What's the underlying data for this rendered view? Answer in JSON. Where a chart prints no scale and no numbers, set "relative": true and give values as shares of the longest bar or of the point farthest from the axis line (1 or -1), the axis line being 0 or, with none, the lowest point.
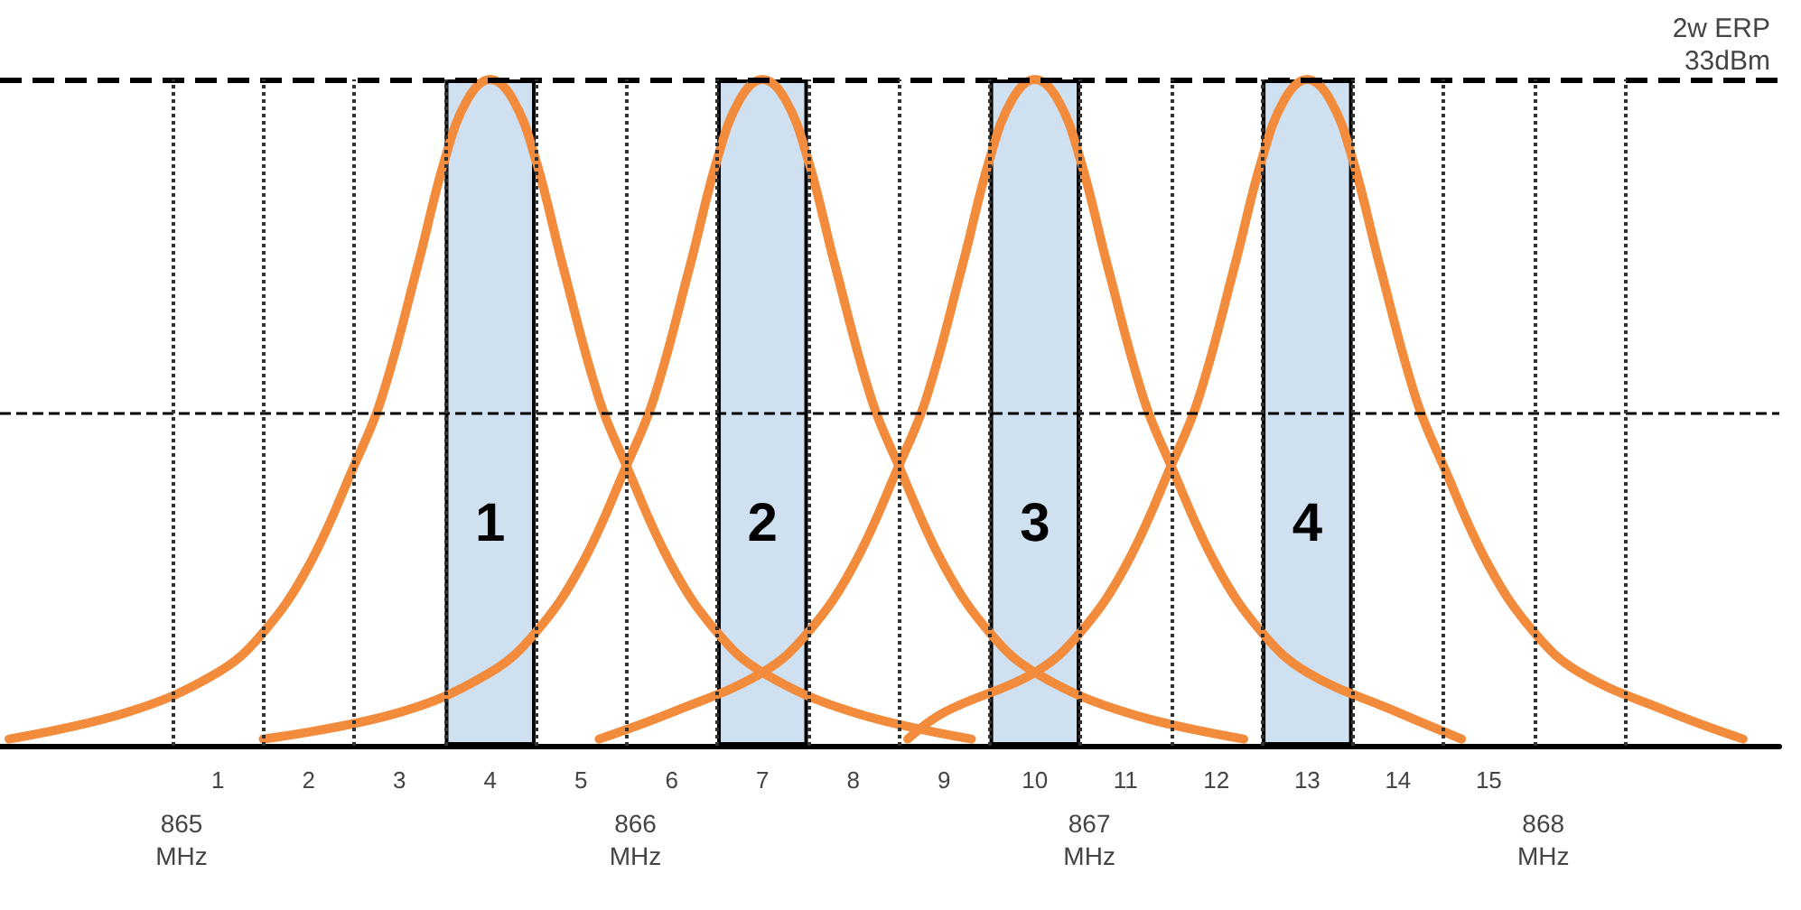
{
  "chart_data": {
    "type": "bar",
    "relative": true,
    "xlim": [
      -1.4,
      18.2
    ],
    "xticks": [
      {
        "value": 0.5,
        "label": null
      },
      {
        "value": 1,
        "label": "1"
      },
      {
        "value": 1.5,
        "label": null
      },
      {
        "value": 2,
        "label": "2"
      },
      {
        "value": 2.5,
        "label": null
      },
      {
        "value": 3,
        "label": "3"
      },
      {
        "value": 3.5,
        "label": null
      },
      {
        "value": 4,
        "label": "4"
      },
      {
        "value": 4.5,
        "label": null
      },
      {
        "value": 5,
        "label": "5"
      },
      {
        "value": 5.5,
        "label": null
      },
      {
        "value": 6,
        "label": "6"
      },
      {
        "value": 6.5,
        "label": null
      },
      {
        "value": 7,
        "label": "7"
      },
      {
        "value": 7.5,
        "label": null
      },
      {
        "value": 8,
        "label": "8"
      },
      {
        "value": 8.5,
        "label": null
      },
      {
        "value": 9,
        "label": "9"
      },
      {
        "value": 9.5,
        "label": null
      },
      {
        "value": 10,
        "label": "10"
      },
      {
        "value": 10.5,
        "label": null
      },
      {
        "value": 11,
        "label": "11"
      },
      {
        "value": 11.5,
        "label": null
      },
      {
        "value": 12,
        "label": "12"
      },
      {
        "value": 12.5,
        "label": null
      },
      {
        "value": 13,
        "label": "13"
      },
      {
        "value": 13.5,
        "label": null
      },
      {
        "value": 14,
        "label": "14"
      },
      {
        "value": 14.5,
        "label": null
      },
      {
        "value": 15,
        "label": "15"
      },
      {
        "value": 15.5,
        "label": null
      },
      {
        "value": 16.5,
        "label": null
      }
    ],
    "x2lim": [
      864.6,
      868.52
    ],
    "x2ticks": [
      {
        "value": 865,
        "label": "865\nMHz"
      },
      {
        "value": 866,
        "label": "866\nMHz"
      },
      {
        "value": 867,
        "label": "867\nMHz"
      },
      {
        "value": 868,
        "label": "868\nMHz"
      }
    ],
    "grid": "x",
    "marker": "none",
    "line_style": "solid",
    "series": [
      {
        "color": "#cfe0f1",
        "x": [
          4,
          7,
          10,
          13
        ],
        "values": [
          1,
          1,
          1,
          1
        ]
      },
      {
        "type": "line",
        "color": "#f28c3c",
        "x": [
          -1.3,
          0,
          1,
          1.5,
          2,
          2.5,
          2.8,
          3.2,
          3.5,
          3.75,
          4,
          4.25,
          4.5,
          4.8,
          5.2,
          5.5,
          6,
          6.5,
          7,
          8,
          9.3
        ],
        "values": [
          0.01,
          0.05,
          0.11,
          0.17,
          0.27,
          0.42,
          0.52,
          0.72,
          0.88,
          0.97,
          1,
          0.97,
          0.88,
          0.72,
          0.52,
          0.42,
          0.27,
          0.17,
          0.11,
          0.05,
          0.01
        ]
      },
      {
        "type": "line",
        "color": "#f28c3c",
        "x": [
          1.5,
          3,
          4,
          4.5,
          5,
          5.5,
          5.8,
          6.2,
          6.5,
          6.75,
          7,
          7.25,
          7.5,
          7.8,
          8.2,
          8.5,
          9,
          9.5,
          10,
          11,
          12.3
        ],
        "values": [
          0.01,
          0.05,
          0.11,
          0.17,
          0.27,
          0.42,
          0.52,
          0.72,
          0.88,
          0.97,
          1,
          0.97,
          0.88,
          0.72,
          0.52,
          0.42,
          0.27,
          0.17,
          0.11,
          0.05,
          0.01
        ]
      },
      {
        "type": "line",
        "color": "#f28c3c",
        "x": [
          5.2,
          6,
          7,
          7.5,
          8,
          8.5,
          8.8,
          9.2,
          9.5,
          9.75,
          10,
          10.25,
          10.5,
          10.8,
          11.2,
          11.5,
          12,
          12.5,
          13,
          14,
          14.7
        ],
        "values": [
          0.01,
          0.05,
          0.11,
          0.17,
          0.27,
          0.42,
          0.52,
          0.72,
          0.88,
          0.97,
          1,
          0.97,
          0.88,
          0.72,
          0.52,
          0.42,
          0.27,
          0.17,
          0.11,
          0.05,
          0.01
        ]
      },
      {
        "type": "line",
        "color": "#f28c3c",
        "x": [
          8.6,
          9,
          10,
          10.5,
          11,
          11.5,
          11.8,
          12.2,
          12.5,
          12.75,
          13,
          13.25,
          13.5,
          13.8,
          14.2,
          14.5,
          15,
          15.5,
          16,
          17,
          17.8
        ],
        "values": [
          0.01,
          0.05,
          0.11,
          0.17,
          0.27,
          0.42,
          0.52,
          0.72,
          0.88,
          0.97,
          1,
          0.97,
          0.88,
          0.72,
          0.52,
          0.42,
          0.27,
          0.17,
          0.11,
          0.05,
          0.01
        ]
      }
    ],
    "ref_lines": [
      {
        "axis": "y",
        "value": 1,
        "label": "2w ERP\n33dBm",
        "line_style": "dashed"
      },
      {
        "axis": "y",
        "value": 0.5,
        "line_style": "dashed"
      }
    ],
    "annotations": [
      "1",
      "2",
      "3",
      "4"
    ]
  }
}
